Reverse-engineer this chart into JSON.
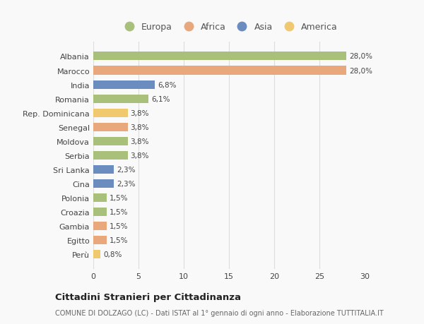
{
  "categories": [
    "Albania",
    "Marocco",
    "India",
    "Romania",
    "Rep. Dominicana",
    "Senegal",
    "Moldova",
    "Serbia",
    "Sri Lanka",
    "Cina",
    "Polonia",
    "Croazia",
    "Gambia",
    "Egitto",
    "Perù"
  ],
  "values": [
    28.0,
    28.0,
    6.8,
    6.1,
    3.8,
    3.8,
    3.8,
    3.8,
    2.3,
    2.3,
    1.5,
    1.5,
    1.5,
    1.5,
    0.8
  ],
  "labels": [
    "28,0%",
    "28,0%",
    "6,8%",
    "6,1%",
    "3,8%",
    "3,8%",
    "3,8%",
    "3,8%",
    "2,3%",
    "2,3%",
    "1,5%",
    "1,5%",
    "1,5%",
    "1,5%",
    "0,8%"
  ],
  "continents": [
    "Europa",
    "Africa",
    "Asia",
    "Europa",
    "America",
    "Africa",
    "Europa",
    "Europa",
    "Asia",
    "Asia",
    "Europa",
    "Europa",
    "Africa",
    "Africa",
    "America"
  ],
  "continent_colors": {
    "Europa": "#a8c07a",
    "Africa": "#e8a87c",
    "Asia": "#6b8cbf",
    "America": "#f0c96e"
  },
  "legend_order": [
    "Europa",
    "Africa",
    "Asia",
    "America"
  ],
  "title": "Cittadini Stranieri per Cittadinanza",
  "subtitle": "COMUNE DI DOLZAGO (LC) - Dati ISTAT al 1° gennaio di ogni anno - Elaborazione TUTTITALIA.IT",
  "xlim": [
    0,
    30
  ],
  "xticks": [
    0,
    5,
    10,
    15,
    20,
    25,
    30
  ],
  "background_color": "#f9f9f9",
  "bar_height": 0.6,
  "grid_color": "#dddddd"
}
